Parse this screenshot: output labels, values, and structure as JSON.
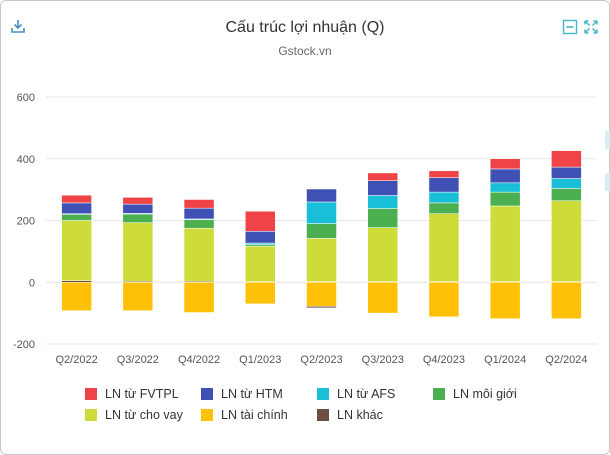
{
  "header": {
    "title": "Cấu trúc lợi nhuận (Q)",
    "subtitle": "Gstock.vn",
    "download_icon": "download-icon",
    "minimize_icon": "minimize-icon",
    "expand_icon": "expand-icon"
  },
  "colors": {
    "fvtpl": "#f04347",
    "htm": "#3f51b5",
    "afs": "#19bfd6",
    "moigioi": "#4caf50",
    "chovay": "#cddc39",
    "taichinh": "#ffc107",
    "khac": "#6d4c41",
    "grid": "#e6e6e6",
    "axis_text": "#555555"
  },
  "chart_data": {
    "type": "bar",
    "stacked": true,
    "title": "Cấu trúc lợi nhuận (Q)",
    "subtitle": "Gstock.vn",
    "xlabel": "",
    "ylabel": "",
    "ylim": [
      -200,
      600
    ],
    "yticks": [
      -200,
      0,
      200,
      400,
      600
    ],
    "grid": true,
    "legend_position": "bottom",
    "categories": [
      "Q2/2022",
      "Q3/2022",
      "Q4/2022",
      "Q1/2023",
      "Q2/2023",
      "Q3/2023",
      "Q4/2023",
      "Q1/2024",
      "Q2/2024"
    ],
    "series": [
      {
        "name": "LN khác",
        "color_key": "khac",
        "values": [
          5,
          3,
          3,
          2,
          2,
          2,
          2,
          2,
          2
        ]
      },
      {
        "name": "LN từ cho vay",
        "color_key": "chovay",
        "values": [
          195,
          190,
          172,
          115,
          140,
          175,
          220,
          245,
          262
        ]
      },
      {
        "name": "LN môi giới",
        "color_key": "moigioi",
        "values": [
          20,
          28,
          28,
          5,
          48,
          62,
          35,
          45,
          40
        ]
      },
      {
        "name": "LN từ AFS",
        "color_key": "afs",
        "values": [
          2,
          2,
          2,
          5,
          70,
          42,
          35,
          30,
          32
        ]
      },
      {
        "name": "LN từ HTM",
        "color_key": "htm",
        "values": [
          35,
          30,
          35,
          38,
          42,
          48,
          47,
          45,
          37
        ]
      },
      {
        "name": "LN từ FVTPL",
        "color_key": "fvtpl",
        "values": [
          25,
          22,
          28,
          65,
          0,
          25,
          22,
          33,
          53
        ]
      },
      {
        "name": "LN tài chính",
        "color_key": "taichinh",
        "values": [
          -92,
          -92,
          -98,
          -70,
          -78,
          -100,
          -112,
          -118,
          -118
        ]
      },
      {
        "name": "LN khác (âm)",
        "color_key": "khac",
        "values": [
          0,
          0,
          0,
          0,
          -5,
          0,
          0,
          0,
          0
        ]
      }
    ]
  },
  "legend": {
    "items": [
      {
        "label": "LN từ FVTPL",
        "color_key": "fvtpl"
      },
      {
        "label": "LN từ HTM",
        "color_key": "htm"
      },
      {
        "label": "LN từ AFS",
        "color_key": "afs"
      },
      {
        "label": "LN môi giới",
        "color_key": "moigioi"
      },
      {
        "label": "LN từ cho vay",
        "color_key": "chovay"
      },
      {
        "label": "LN tài chính",
        "color_key": "taichinh"
      },
      {
        "label": "LN khác",
        "color_key": "khac"
      }
    ]
  }
}
